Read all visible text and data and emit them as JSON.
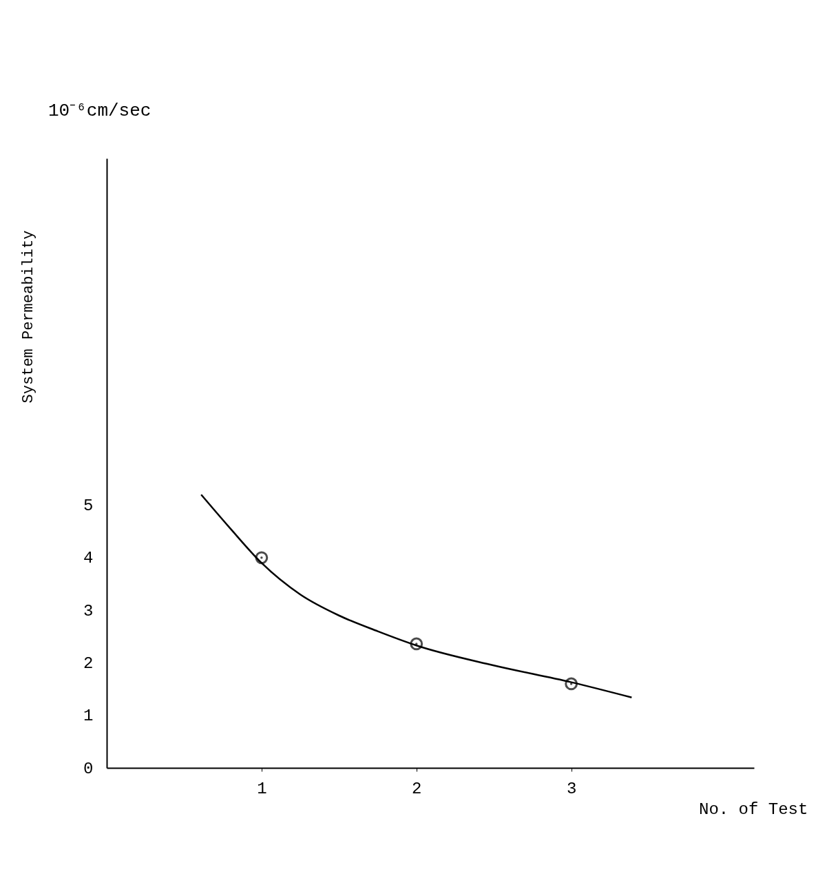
{
  "chart_data": {
    "type": "line",
    "xlabel": "No. of Test",
    "ylabel": "System Permeability",
    "annotations": [
      "10⁻⁶cm/sec"
    ],
    "xlim": [
      0,
      4.18
    ],
    "xticks": [
      1,
      2,
      3
    ],
    "ylim": [
      0,
      11.6
    ],
    "yticks": [
      0,
      1,
      2,
      3,
      4,
      5
    ],
    "grid": false,
    "series": [
      {
        "color": "#000000",
        "marker": "none",
        "line_style": "solid",
        "x": [
          0.61,
          0.8,
          1.0,
          1.25,
          1.5,
          1.75,
          2.0,
          2.5,
          3.0,
          3.39
        ],
        "values": [
          5.2,
          4.55,
          3.9,
          3.3,
          2.9,
          2.6,
          2.33,
          1.95,
          1.63,
          1.34
        ]
      },
      {
        "type": "scatter",
        "color": "#000000",
        "marker": "circle",
        "x": [
          1,
          2,
          3
        ],
        "values": [
          4.0,
          2.36,
          1.6
        ]
      }
    ]
  }
}
